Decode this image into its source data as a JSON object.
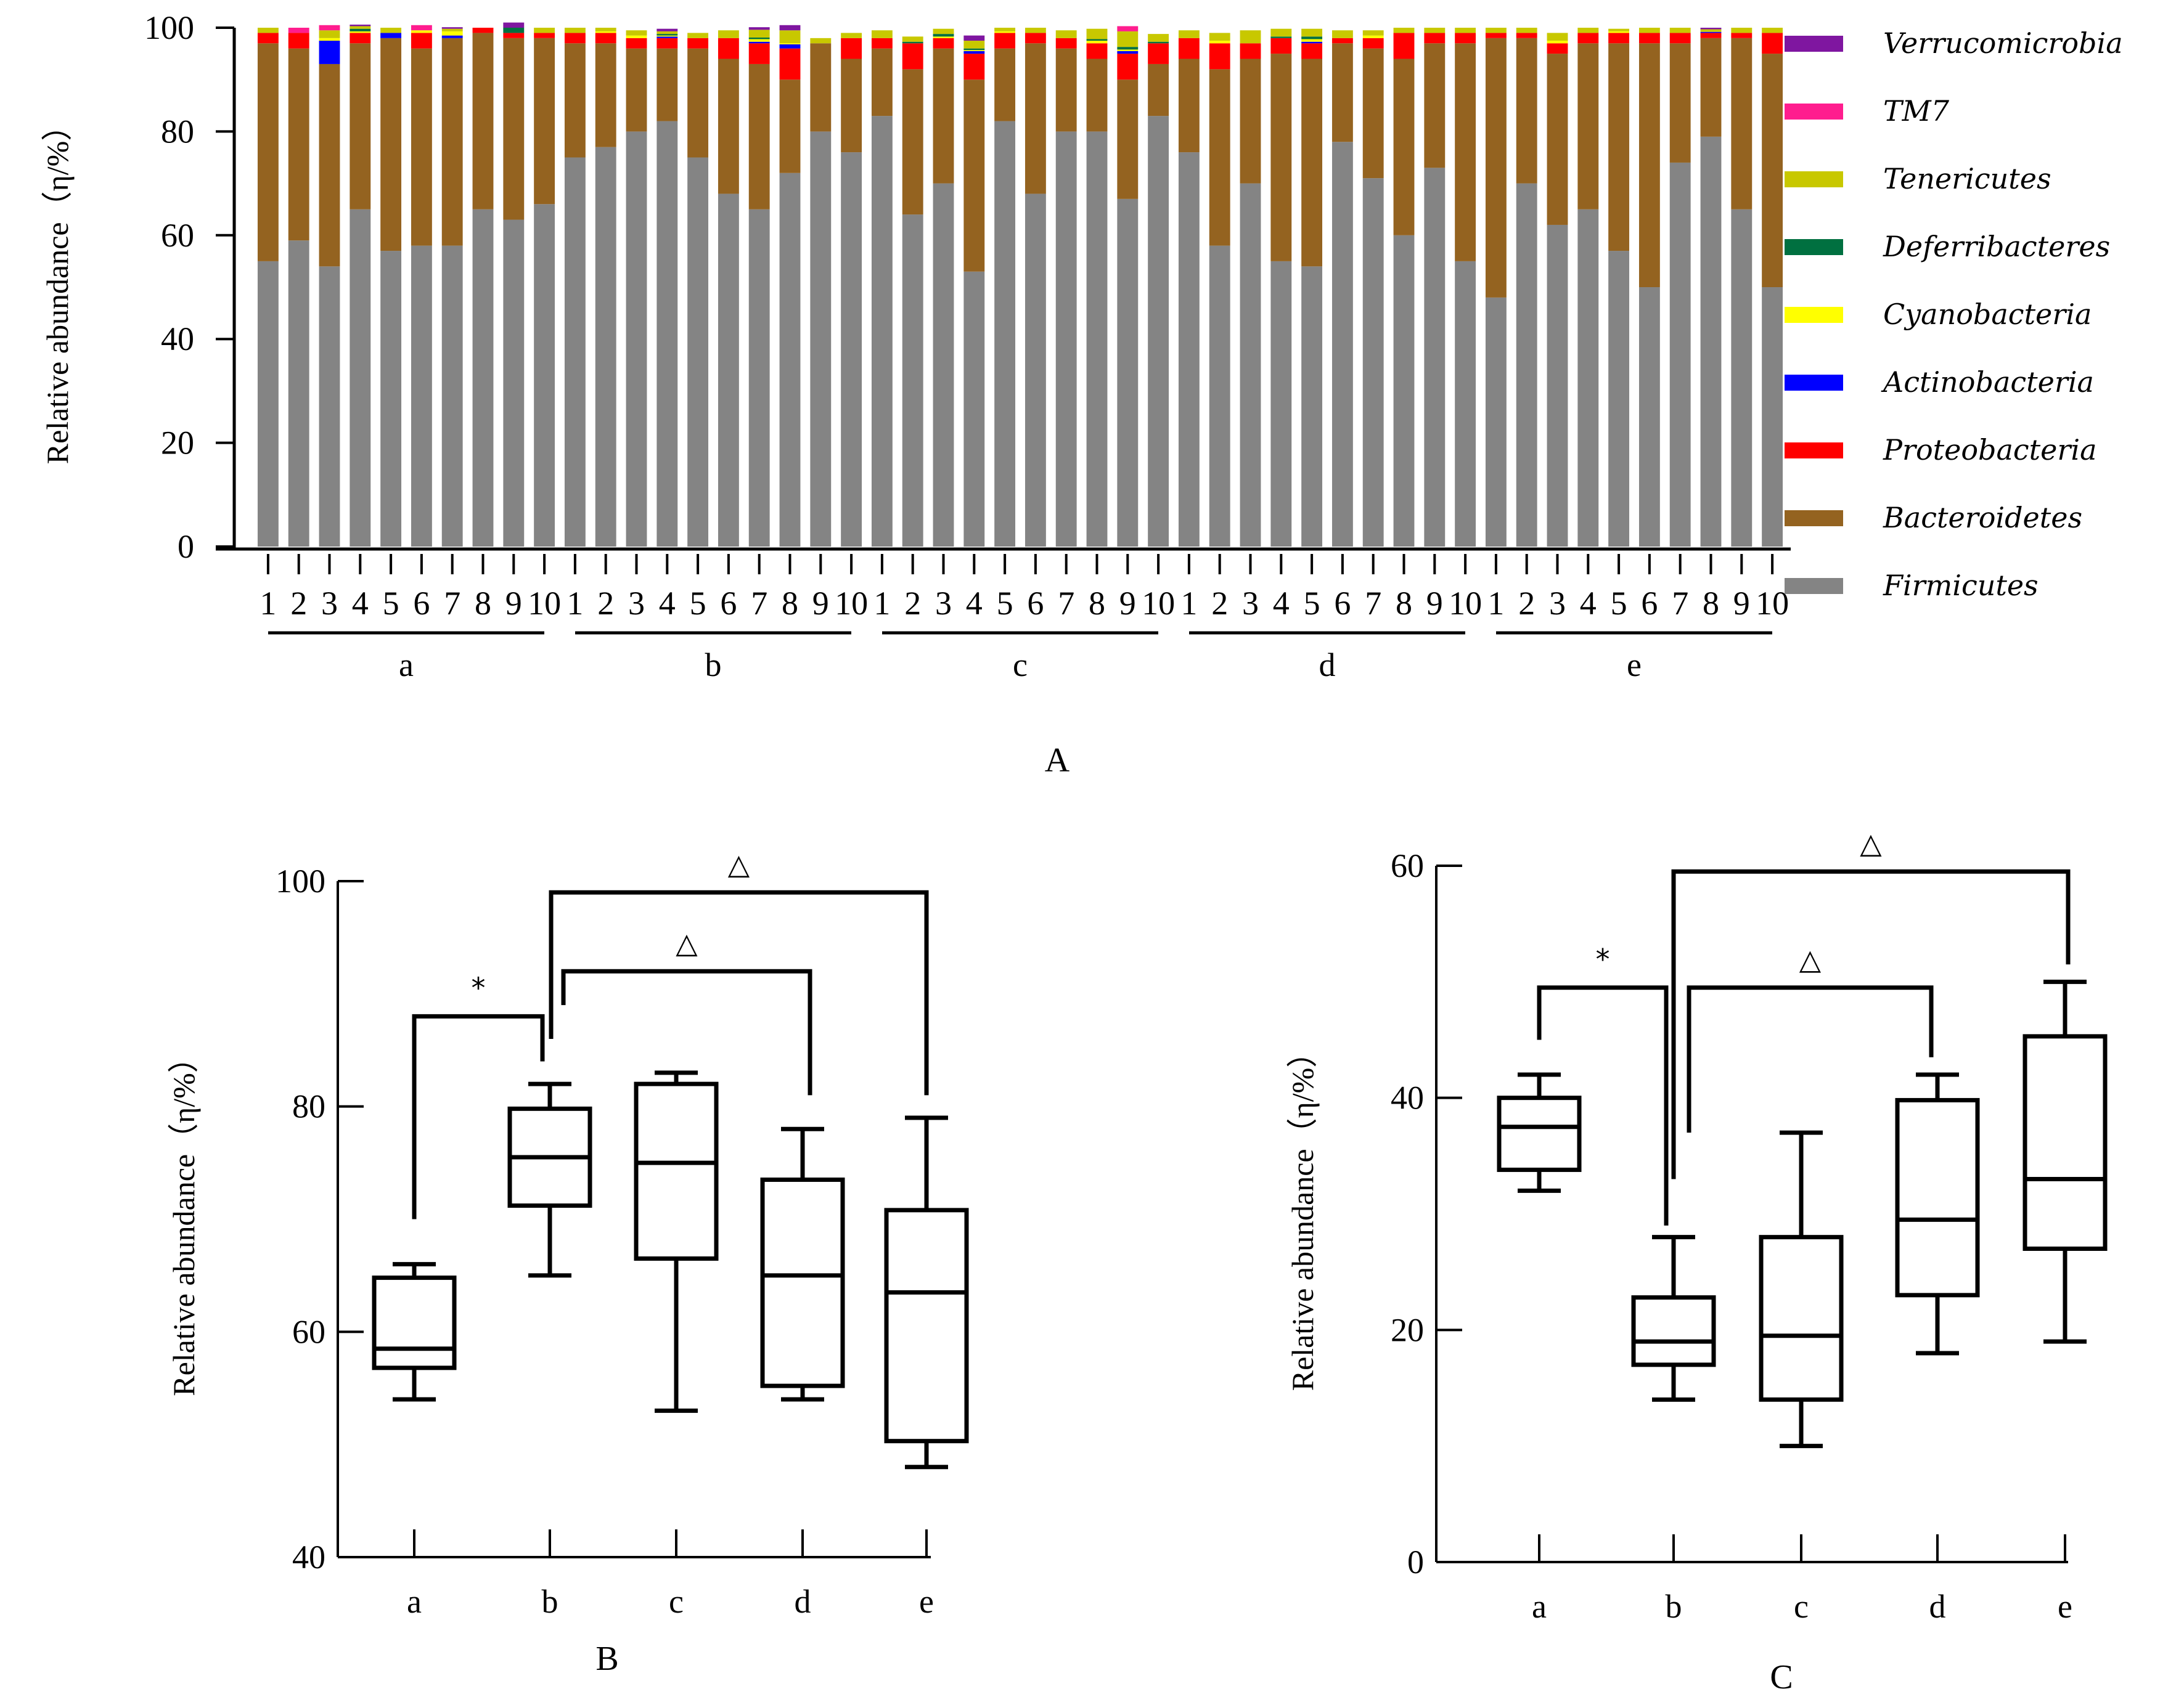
{
  "chart_data": [
    {
      "panel": "A",
      "type": "bar",
      "stacked": true,
      "ylabel": "Relative abundance（η/%）",
      "ylim": [
        0,
        100
      ],
      "yticks": [
        0,
        20,
        40,
        60,
        80,
        100
      ],
      "groups": [
        "a",
        "b",
        "c",
        "d",
        "e"
      ],
      "sample_labels": [
        "1",
        "2",
        "3",
        "4",
        "5",
        "6",
        "7",
        "8",
        "9",
        "10"
      ],
      "legend_position": "right",
      "series": [
        {
          "name": "Firmicutes",
          "color": "#848484",
          "values": [
            55,
            59,
            54,
            65,
            57,
            58,
            58,
            65,
            63,
            66,
            75,
            77,
            80,
            82,
            75,
            68,
            65,
            72,
            80,
            76,
            83,
            64,
            70,
            53,
            82,
            68,
            80,
            80,
            67,
            83,
            76,
            58,
            70,
            55,
            54,
            78,
            71,
            60,
            73,
            55,
            48,
            70,
            62,
            65,
            57,
            50,
            74,
            79,
            65,
            50
          ]
        },
        {
          "name": "Bacteroidetes",
          "color": "#946320",
          "values": [
            42,
            37,
            39,
            32,
            41,
            38,
            40,
            34,
            35,
            32,
            22,
            20,
            16,
            14,
            21,
            26,
            28,
            18,
            17,
            18,
            13,
            28,
            26,
            37,
            14,
            29,
            16,
            14,
            23,
            10,
            18,
            34,
            24,
            40,
            40,
            19,
            25,
            34,
            24,
            42,
            50,
            28,
            33,
            32,
            40,
            47,
            23,
            19,
            33,
            45
          ]
        },
        {
          "name": "Proteobacteria",
          "color": "#ff0000",
          "values": [
            2,
            3,
            0,
            2,
            0,
            3,
            0,
            1,
            1,
            1,
            2,
            2,
            2,
            2,
            2,
            4,
            4,
            6,
            0,
            4,
            2,
            5,
            2,
            5,
            3,
            2,
            2,
            3,
            5,
            4,
            4,
            5,
            3,
            3,
            3,
            1,
            2,
            5,
            2,
            2,
            1,
            1,
            2,
            2,
            2,
            2,
            2,
            1,
            1,
            4
          ]
        },
        {
          "name": "Actinobacteria",
          "color": "#0000ff",
          "values": [
            0,
            0,
            4.5,
            0,
            1,
            0,
            0.5,
            0,
            0,
            0,
            0,
            0,
            0,
            0.3,
            0,
            0,
            0.3,
            0.8,
            0,
            0,
            0,
            0,
            0,
            0.5,
            0,
            0,
            0,
            0,
            0.5,
            0,
            0,
            0,
            0,
            0,
            0.3,
            0,
            0,
            0,
            0,
            0,
            0,
            0,
            0,
            0,
            0,
            0,
            0,
            0.2,
            0,
            0
          ]
        },
        {
          "name": "Cyanobacteria",
          "color": "#ffff00",
          "values": [
            0,
            0,
            0.5,
            0.3,
            0,
            0.5,
            0.8,
            0,
            0,
            0,
            0,
            0.3,
            0.5,
            0.2,
            0,
            0,
            0.5,
            0.2,
            0,
            0,
            0,
            0,
            0.3,
            0.2,
            0.3,
            0,
            0,
            0.5,
            0.3,
            0,
            0,
            0.5,
            0,
            0,
            0.5,
            0,
            0.5,
            0,
            0,
            0,
            0,
            0,
            0.5,
            0,
            0.3,
            0,
            0,
            0,
            0,
            0
          ]
        },
        {
          "name": "Deferribacteres",
          "color": "#007040",
          "values": [
            0,
            0,
            0,
            0.5,
            0,
            0,
            0,
            0,
            1,
            0,
            0,
            0,
            0,
            0.3,
            0,
            0,
            0.3,
            0,
            0,
            0,
            0,
            0.3,
            0.5,
            0.3,
            0,
            0,
            0,
            0.3,
            0.5,
            0.3,
            0,
            0,
            0,
            0.3,
            0.5,
            0,
            0,
            0,
            0,
            0,
            0,
            0,
            0,
            0,
            0,
            0,
            0,
            0,
            0,
            0
          ]
        },
        {
          "name": "Tenericutes",
          "color": "#c8c800",
          "values": [
            1,
            0,
            1.5,
            0.5,
            1,
            0,
            0.5,
            0,
            0,
            1,
            1,
            0.7,
            1,
            0.5,
            1,
            1.5,
            1.5,
            2.5,
            1,
            1,
            1.5,
            1,
            1,
            1.5,
            0.7,
            1,
            1.5,
            2,
            3,
            1.5,
            1.5,
            1.5,
            2.5,
            1.5,
            1.5,
            1.5,
            1,
            1,
            1,
            1,
            1,
            1,
            1.5,
            1,
            0.5,
            1,
            1,
            0.5,
            1,
            1
          ]
        },
        {
          "name": "TM7",
          "color": "#ff1d8e",
          "values": [
            0,
            1,
            1,
            0,
            0,
            1,
            0,
            0,
            0,
            0,
            0,
            0,
            0,
            0,
            0,
            0,
            0,
            0,
            0,
            0,
            0,
            0,
            0,
            0,
            0,
            0,
            0,
            0,
            1,
            0,
            0,
            0,
            0,
            0,
            0,
            0,
            0,
            0,
            0,
            0,
            0,
            0,
            0,
            0,
            0,
            0,
            0,
            0,
            0,
            0
          ]
        },
        {
          "name": "Verrucomicrobia",
          "color": "#7f16a0",
          "values": [
            0,
            0,
            0,
            0.3,
            0,
            0,
            0.3,
            0,
            1,
            0,
            0,
            0,
            0,
            0.5,
            0,
            0,
            0.5,
            1,
            0,
            0,
            0,
            0,
            0,
            1,
            0,
            0,
            0,
            0,
            0,
            0,
            0,
            0,
            0,
            0,
            0,
            0,
            0,
            0,
            0,
            0,
            0,
            0,
            0,
            0,
            0,
            0,
            0,
            0.3,
            0,
            0
          ]
        }
      ],
      "legend_order": [
        "Verrucomicrobia",
        "TM7",
        "Tenericutes",
        "Deferribacteres",
        "Cyanobacteria",
        "Actinobacteria",
        "Proteobacteria",
        "Bacteroidetes",
        "Firmicutes"
      ]
    },
    {
      "panel": "B",
      "type": "box",
      "ylabel": "Relative abundance（η/%）",
      "ylim": [
        40,
        100
      ],
      "yticks": [
        40,
        60,
        80,
        100
      ],
      "categories": [
        "a",
        "b",
        "c",
        "d",
        "e"
      ],
      "boxes": [
        {
          "min": 54,
          "q1": 56.8,
          "median": 58.5,
          "q3": 64.8,
          "max": 66
        },
        {
          "min": 65,
          "q1": 71.2,
          "median": 75.5,
          "q3": 79.8,
          "max": 82
        },
        {
          "min": 53,
          "q1": 66.5,
          "median": 75,
          "q3": 82,
          "max": 83
        },
        {
          "min": 54,
          "q1": 55.2,
          "median": 65,
          "q3": 73.5,
          "max": 78
        },
        {
          "min": 48,
          "q1": 50.3,
          "median": 63.5,
          "q3": 70.8,
          "max": 79
        }
      ],
      "significance": [
        {
          "from": "a",
          "to": "b",
          "symbol": "*",
          "level": 88,
          "left_end": 70,
          "right_end": 84
        },
        {
          "from": "b",
          "to": "d",
          "symbol": "△",
          "level": 92,
          "left_end": 89,
          "right_end": 81
        },
        {
          "from": "b",
          "to": "e",
          "symbol": "△",
          "level": 99,
          "left_end": 86,
          "right_end": 81
        }
      ]
    },
    {
      "panel": "C",
      "type": "box",
      "ylabel": "Relative abundance（η/%）",
      "ylim": [
        0,
        60
      ],
      "yticks": [
        0,
        20,
        40,
        60
      ],
      "categories": [
        "a",
        "b",
        "c",
        "d",
        "e"
      ],
      "boxes": [
        {
          "min": 32,
          "q1": 33.8,
          "median": 37.5,
          "q3": 40,
          "max": 42
        },
        {
          "min": 14,
          "q1": 17,
          "median": 19,
          "q3": 22.8,
          "max": 28
        },
        {
          "min": 10,
          "q1": 14,
          "median": 19.5,
          "q3": 28,
          "max": 37
        },
        {
          "min": 18,
          "q1": 23,
          "median": 29.5,
          "q3": 39.8,
          "max": 42
        },
        {
          "min": 19,
          "q1": 27,
          "median": 33,
          "q3": 45.3,
          "max": 50
        }
      ],
      "significance": [
        {
          "from": "a",
          "to": "b",
          "symbol": "*",
          "level": 49.5,
          "left_end": 45,
          "right_end": 29
        },
        {
          "from": "b",
          "to": "d",
          "symbol": "△",
          "level": 49.5,
          "left_end": 37,
          "right_end": 43.5
        },
        {
          "from": "b",
          "to": "e",
          "symbol": "△",
          "level": 59.5,
          "left_end": 33,
          "right_end": 51.5
        }
      ]
    }
  ],
  "labels": {
    "panel_a": "A",
    "panel_b": "B",
    "panel_c": "C"
  }
}
